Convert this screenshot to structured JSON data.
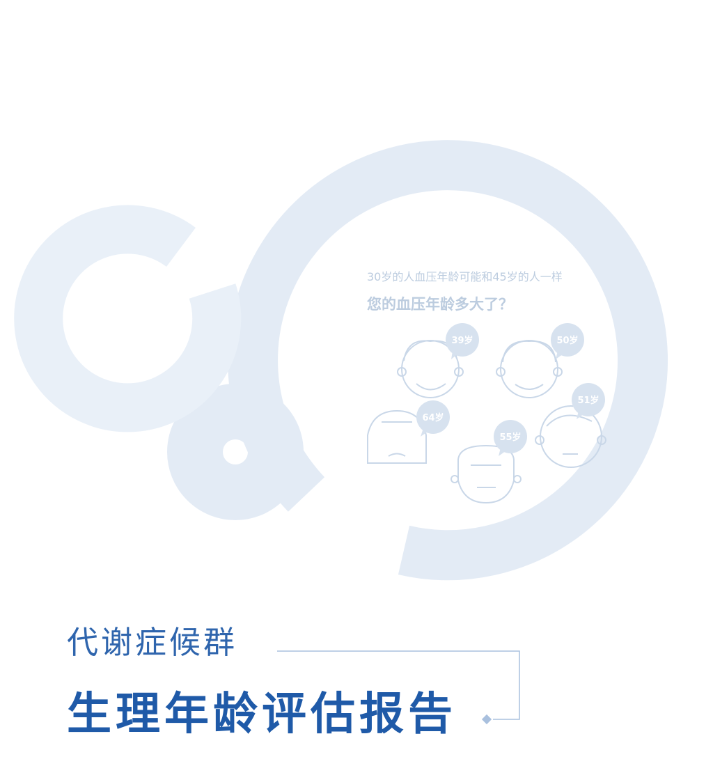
{
  "illustration": {
    "subtitle": "30岁的人血压年龄可能和45岁的人一样",
    "question": "您的血压年龄多大了？",
    "faces": [
      {
        "age_label": "39岁"
      },
      {
        "age_label": "50岁"
      },
      {
        "age_label": "64岁"
      },
      {
        "age_label": "55岁"
      },
      {
        "age_label": "51岁"
      }
    ]
  },
  "title": {
    "line1": "代谢症候群",
    "line2": "生理年龄评估报告"
  },
  "colors": {
    "title_blue": "#1f5aa8",
    "ring_light": "#e3ebf5",
    "ring_lighter": "#e9f0f8",
    "illustration_gray": "#bcccdf"
  }
}
